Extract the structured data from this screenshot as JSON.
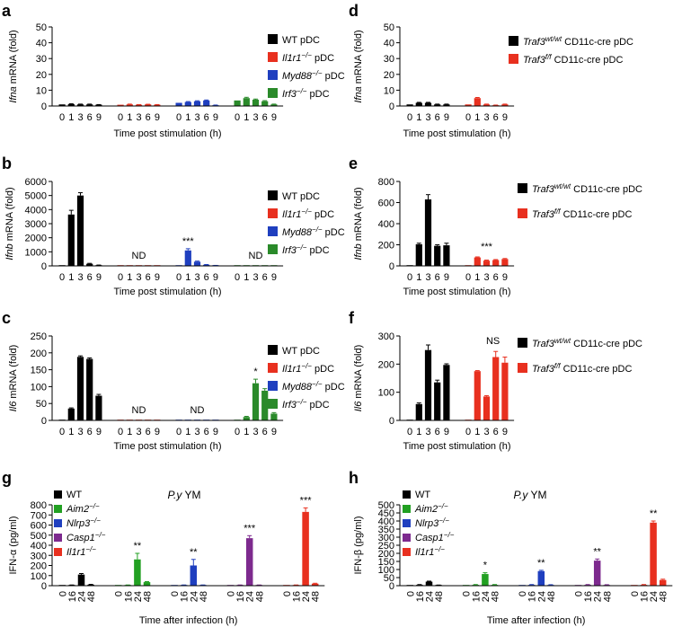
{
  "colors": {
    "WT": "#000000",
    "Il1r1": "#e8301f",
    "Myd88": "#1f3fbf",
    "Irf3": "#2a8a2a",
    "Aim2": "#22a022",
    "Nlrp3": "#1f3fbf",
    "Casp1": "#7d2a8e"
  },
  "chart_data": [
    {
      "panel": "a",
      "type": "bar",
      "ylabel": "Ifna mRNA (fold)",
      "xlabel": "Time post stimulation (h)",
      "ylim": [
        0,
        50
      ],
      "yticks": [
        0,
        10,
        20,
        30,
        40,
        50
      ],
      "categories": [
        "0",
        "1",
        "3",
        "6",
        "9"
      ],
      "series": [
        {
          "name": "WT pDC",
          "color": "#000000",
          "values": [
            1,
            1.2,
            1,
            1,
            0.8
          ],
          "errors": [
            0,
            0.2,
            0.2,
            0.2,
            0.1
          ],
          "annotation": ""
        },
        {
          "name": "Il1r1−/− pDC",
          "color": "#e8301f",
          "values": [
            0.8,
            1,
            0.8,
            1,
            0.8
          ],
          "errors": [
            0,
            0.2,
            0.1,
            0.1,
            0.1
          ],
          "annotation": ""
        },
        {
          "name": "Myd88−/− pDC",
          "color": "#1f3fbf",
          "values": [
            2,
            2.5,
            3,
            3.5,
            0.5
          ],
          "errors": [
            0,
            0.3,
            0.3,
            0.3,
            0.1
          ],
          "annotation": ""
        },
        {
          "name": "Irf3−/− pDC",
          "color": "#2a8a2a",
          "values": [
            3.5,
            5,
            4,
            3,
            1
          ],
          "errors": [
            0,
            0.5,
            0.4,
            0.4,
            0.2
          ],
          "annotation": ""
        }
      ]
    },
    {
      "panel": "d",
      "type": "bar",
      "ylabel": "Ifna mRNA (fold)",
      "xlabel": "Time post stimulation (h)",
      "ylim": [
        0,
        50
      ],
      "yticks": [
        0,
        10,
        20,
        30,
        40,
        50
      ],
      "categories": [
        "0",
        "1",
        "3",
        "6",
        "9"
      ],
      "series": [
        {
          "name": "Traf3wt/wt CD11c-cre pDC",
          "color": "#000000",
          "values": [
            1,
            2,
            2,
            1,
            1
          ],
          "errors": [
            0,
            0.3,
            0.3,
            0.2,
            0.2
          ],
          "annotation": ""
        },
        {
          "name": "Traf3f/f CD11c-cre pDC",
          "color": "#e8301f",
          "values": [
            1,
            5,
            1,
            0.5,
            1
          ],
          "errors": [
            0,
            0.4,
            0.2,
            0.1,
            0.2
          ],
          "annotation": ""
        }
      ]
    },
    {
      "panel": "b",
      "type": "bar",
      "ylabel": "Ifnb mRNA (fold)",
      "xlabel": "Time post stimulation (h)",
      "ylim": [
        0,
        6000
      ],
      "yticks": [
        0,
        1000,
        2000,
        3000,
        4000,
        5000,
        6000
      ],
      "categories": [
        "0",
        "1",
        "3",
        "6",
        "9"
      ],
      "series": [
        {
          "name": "WT pDC",
          "color": "#000000",
          "values": [
            5,
            3650,
            5000,
            150,
            50
          ],
          "errors": [
            0,
            300,
            200,
            30,
            10
          ],
          "annotation": ""
        },
        {
          "name": "Il1r1−/− pDC",
          "color": "#e8301f",
          "values": [
            3,
            3,
            3,
            3,
            3
          ],
          "errors": [
            0,
            0,
            0,
            0,
            0
          ],
          "annotation": "ND"
        },
        {
          "name": "Myd88−/− pDC",
          "color": "#1f3fbf",
          "values": [
            5,
            1100,
            300,
            80,
            30
          ],
          "errors": [
            0,
            120,
            40,
            15,
            5
          ],
          "annotation": "***"
        },
        {
          "name": "Irf3−/− pDC",
          "color": "#2a8a2a",
          "values": [
            3,
            3,
            3,
            3,
            3
          ],
          "errors": [
            0,
            0,
            0,
            0,
            0
          ],
          "annotation": "ND"
        }
      ]
    },
    {
      "panel": "e",
      "type": "bar",
      "ylabel": "Ifnb mRNA (fold)",
      "xlabel": "Time post stimulation (h)",
      "ylim": [
        0,
        800
      ],
      "yticks": [
        0,
        200,
        400,
        600,
        800
      ],
      "categories": [
        "0",
        "1",
        "3",
        "6",
        "9"
      ],
      "series": [
        {
          "name": "Traf3wt/wt CD11c-cre pDC",
          "color": "#000000",
          "values": [
            3,
            205,
            630,
            190,
            195
          ],
          "errors": [
            0,
            10,
            45,
            10,
            20
          ],
          "annotation": ""
        },
        {
          "name": "Traf3f/f CD11c-cre pDC",
          "color": "#e8301f",
          "values": [
            3,
            80,
            50,
            55,
            65
          ],
          "errors": [
            0,
            5,
            5,
            5,
            5
          ],
          "annotation": "***"
        }
      ]
    },
    {
      "panel": "c",
      "type": "bar",
      "ylabel": "Il6 mRNA (fold)",
      "xlabel": "Time post stimulation (h)",
      "ylim": [
        0,
        250
      ],
      "yticks": [
        0,
        50,
        100,
        150,
        200,
        250
      ],
      "categories": [
        "0",
        "1",
        "3",
        "6",
        "9"
      ],
      "series": [
        {
          "name": "WT pDC",
          "color": "#000000",
          "values": [
            1,
            35,
            188,
            182,
            73
          ],
          "errors": [
            0,
            2,
            3,
            3,
            4
          ],
          "annotation": ""
        },
        {
          "name": "Il1r1−/− pDC",
          "color": "#e8301f",
          "values": [
            1,
            1,
            1,
            1,
            1
          ],
          "errors": [
            0,
            0,
            0,
            0,
            0
          ],
          "annotation": "ND"
        },
        {
          "name": "Myd88−/− pDC",
          "color": "#1f3fbf",
          "values": [
            1,
            2,
            2,
            1,
            1
          ],
          "errors": [
            0,
            0,
            0,
            0,
            0
          ],
          "annotation": "ND"
        },
        {
          "name": "Irf3−/− pDC",
          "color": "#2a8a2a",
          "values": [
            1,
            10,
            110,
            88,
            20
          ],
          "errors": [
            0,
            2,
            12,
            6,
            3
          ],
          "annotation": "*"
        }
      ]
    },
    {
      "panel": "f",
      "type": "bar",
      "ylabel": "Il6 mRNA (fold)",
      "xlabel": "Time post stimulation (h)",
      "ylim": [
        0,
        300
      ],
      "yticks": [
        0,
        100,
        200,
        300
      ],
      "categories": [
        "0",
        "1",
        "3",
        "6",
        "9"
      ],
      "series": [
        {
          "name": "Traf3wt/wt CD11c-cre pDC",
          "color": "#000000",
          "values": [
            1,
            58,
            250,
            135,
            197
          ],
          "errors": [
            0,
            4,
            18,
            8,
            4
          ],
          "annotation": ""
        },
        {
          "name": "Traf3f/f CD11c-cre pDC",
          "color": "#e8301f",
          "values": [
            1,
            175,
            85,
            225,
            205
          ],
          "errors": [
            0,
            2,
            3,
            20,
            20
          ],
          "annotation": "NS"
        }
      ]
    },
    {
      "panel": "g",
      "type": "bar",
      "title": "P.y YM",
      "ylabel": "IFN-α (pg/ml)",
      "xlabel": "Time after infection (h)",
      "ylim": [
        0,
        800
      ],
      "yticks": [
        0,
        100,
        200,
        300,
        400,
        500,
        600,
        700,
        800
      ],
      "categories": [
        "0",
        "16",
        "24",
        "48"
      ],
      "series": [
        {
          "name": "WT",
          "color": "#000000",
          "values": [
            2,
            5,
            110,
            10
          ],
          "errors": [
            0,
            2,
            10,
            3
          ],
          "annotation": ""
        },
        {
          "name": "Aim2−/−",
          "color": "#22a022",
          "values": [
            2,
            5,
            260,
            35
          ],
          "errors": [
            0,
            2,
            60,
            5
          ],
          "annotation": "**"
        },
        {
          "name": "Nlrp3−/−",
          "color": "#1f3fbf",
          "values": [
            2,
            5,
            200,
            5
          ],
          "errors": [
            0,
            2,
            60,
            2
          ],
          "annotation": "**"
        },
        {
          "name": "Casp1−/−",
          "color": "#7d2a8e",
          "values": [
            2,
            5,
            470,
            5
          ],
          "errors": [
            0,
            2,
            25,
            2
          ],
          "annotation": "***"
        },
        {
          "name": "Il1r1−/−",
          "color": "#e8301f",
          "values": [
            2,
            5,
            730,
            20
          ],
          "errors": [
            0,
            2,
            40,
            4
          ],
          "annotation": "***"
        }
      ]
    },
    {
      "panel": "h",
      "type": "bar",
      "title": "P.y YM",
      "ylabel": "IFN-β (pg/ml)",
      "xlabel": "Time after infection (h)",
      "ylim": [
        0,
        500
      ],
      "yticks": [
        0,
        50,
        100,
        150,
        200,
        250,
        300,
        350,
        400,
        450,
        500
      ],
      "categories": [
        "0",
        "16",
        "24",
        "48"
      ],
      "series": [
        {
          "name": "WT",
          "color": "#000000",
          "values": [
            2,
            5,
            25,
            3
          ],
          "errors": [
            0,
            2,
            3,
            1
          ],
          "annotation": ""
        },
        {
          "name": "Aim2−/−",
          "color": "#22a022",
          "values": [
            2,
            5,
            72,
            5
          ],
          "errors": [
            0,
            2,
            8,
            2
          ],
          "annotation": "*"
        },
        {
          "name": "Nlrp3−/−",
          "color": "#1f3fbf",
          "values": [
            2,
            5,
            90,
            4
          ],
          "errors": [
            0,
            2,
            5,
            2
          ],
          "annotation": "**"
        },
        {
          "name": "Casp1−/−",
          "color": "#7d2a8e",
          "values": [
            2,
            5,
            155,
            4
          ],
          "errors": [
            0,
            2,
            10,
            2
          ],
          "annotation": "**"
        },
        {
          "name": "Il1r1−/−",
          "color": "#e8301f",
          "values": [
            2,
            5,
            390,
            35
          ],
          "errors": [
            0,
            2,
            10,
            5
          ],
          "annotation": "**"
        }
      ]
    }
  ]
}
